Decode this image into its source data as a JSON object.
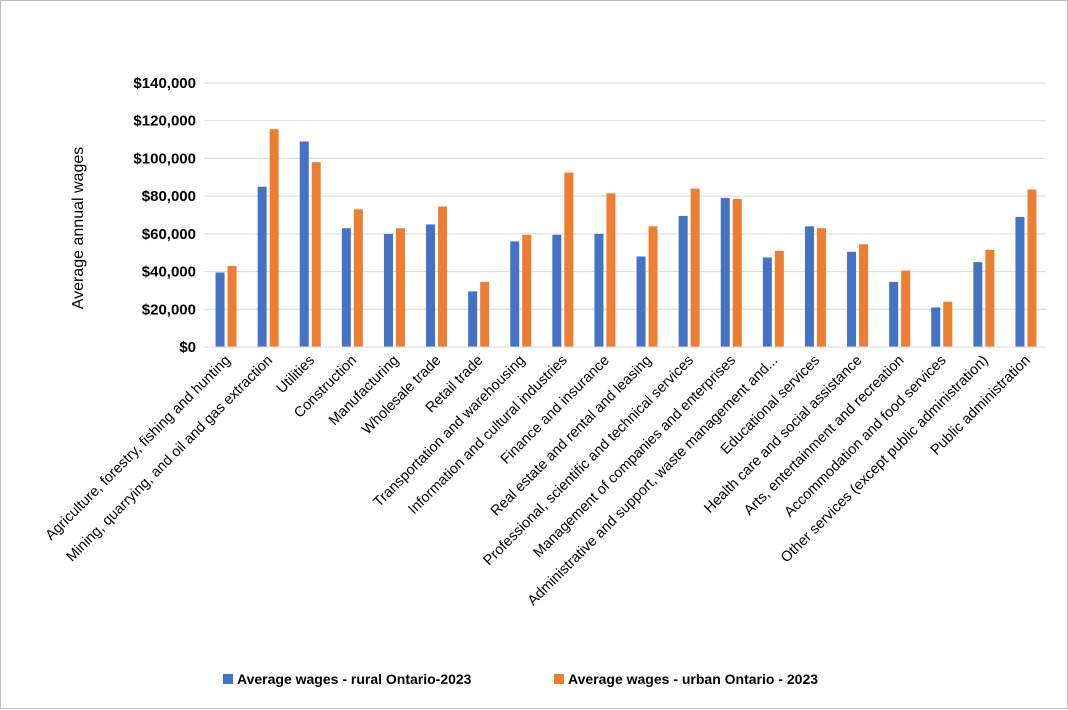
{
  "chart_data": {
    "type": "bar",
    "title": "",
    "xlabel": "",
    "ylabel": "Average annual wages",
    "ylim": [
      0,
      140000
    ],
    "y_ticks": [
      0,
      20000,
      40000,
      60000,
      80000,
      100000,
      120000,
      140000
    ],
    "y_tick_labels": [
      "$0",
      "$20,000",
      "$40,000",
      "$60,000",
      "$80,000",
      "$100,000",
      "$120,000",
      "$140,000"
    ],
    "grid": true,
    "legend_position": "bottom",
    "categories": [
      "Agriculture, forestry, fishing and hunting",
      "Mining, quarrying, and oil and gas extraction",
      "Utilities",
      "Construction",
      "Manufacturing",
      "Wholesale trade",
      "Retail trade",
      "Transportation and warehousing",
      "Information and cultural industries",
      "Finance and insurance",
      "Real estate and rental and leasing",
      "Professional, scientific and technical services",
      "Management of companies and enterprises",
      "Administrative and support, waste management and...",
      "Educational services",
      "Health care and social assistance",
      "Arts, entertainment and recreation",
      "Accommodation and food services",
      "Other services (except public administration)",
      "Public administration"
    ],
    "series": [
      {
        "name": "Average wages - rural Ontario-2023",
        "color": "#4472c4",
        "values": [
          39500,
          85000,
          109000,
          63000,
          60000,
          65000,
          29500,
          56000,
          59500,
          60000,
          48000,
          69500,
          79000,
          47500,
          64000,
          50500,
          34500,
          21000,
          45000,
          69000
        ]
      },
      {
        "name": "Average wages - urban Ontario - 2023",
        "color": "#ed7d31",
        "values": [
          43000,
          115500,
          98000,
          73000,
          63000,
          74500,
          34500,
          59500,
          92500,
          81500,
          64000,
          84000,
          78500,
          51000,
          63000,
          54500,
          40500,
          24000,
          51500,
          83500
        ]
      }
    ]
  }
}
